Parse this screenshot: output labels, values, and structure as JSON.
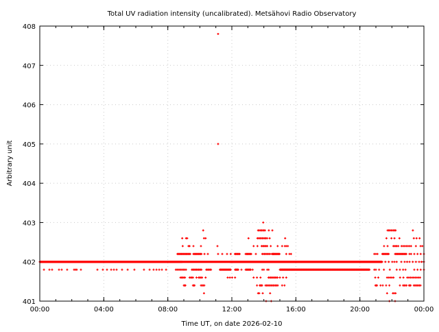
{
  "chart_data": {
    "type": "scatter",
    "title": "Total UV radiation intensity (uncalibrated). Metsähovi Radio Observatory",
    "xlabel": "Time UT, on date 2026-02-10",
    "ylabel": "Arbitrary unit",
    "xlim_hours": [
      0,
      24
    ],
    "ylim": [
      401,
      408
    ],
    "grid": true,
    "x_ticks": [
      {
        "hour": 0,
        "label": "00:00"
      },
      {
        "hour": 4,
        "label": "04:00"
      },
      {
        "hour": 8,
        "label": "08:00"
      },
      {
        "hour": 12,
        "label": "12:00"
      },
      {
        "hour": 16,
        "label": "16:00"
      },
      {
        "hour": 20,
        "label": "20:00"
      },
      {
        "hour": 24,
        "label": "00:00"
      }
    ],
    "y_ticks": [
      "401",
      "402",
      "403",
      "404",
      "405",
      "406",
      "407",
      "408"
    ],
    "series_color": "#ff0000",
    "series": [
      {
        "value": 407.8,
        "points": [
          11.14
        ]
      },
      {
        "value": 405.0,
        "points": [
          11.14
        ]
      },
      {
        "value": 403.0,
        "points": [
          13.96
        ]
      },
      {
        "value": 402.8,
        "points": [
          10.21,
          13.64,
          13.71,
          13.79,
          13.86,
          13.93,
          14.0,
          14.07,
          14.31,
          14.53,
          21.73,
          21.8,
          21.87,
          21.95,
          22.02,
          22.1,
          22.17,
          22.23,
          23.31
        ]
      },
      {
        "value": 402.6,
        "points": [
          8.9,
          9.14,
          9.21,
          10.26,
          10.36,
          13.04,
          13.6,
          13.67,
          13.75,
          13.82,
          13.9,
          13.97,
          14.05,
          14.12,
          14.2,
          14.36,
          15.33,
          21.66,
          21.97,
          22.16,
          22.47,
          23.37,
          23.54,
          23.73
        ]
      },
      {
        "value": 402.4,
        "points": [
          8.93,
          9.29,
          9.36,
          9.6,
          10.07,
          11.1,
          13.36,
          13.6,
          13.86,
          13.93,
          14.0,
          14.07,
          14.14,
          14.21,
          14.43,
          14.86,
          15.14,
          15.31,
          15.4,
          15.5,
          21.51,
          21.73,
          22.09,
          22.17,
          22.24,
          22.31,
          22.4,
          22.6,
          22.7,
          22.8,
          22.9,
          23.0,
          23.1,
          23.2,
          23.5,
          23.79,
          23.9
        ]
      },
      {
        "value": 402.2,
        "runs": [
          [
            8.6,
            9.4,
            0.05
          ],
          [
            9.6,
            10.1,
            0.05
          ],
          [
            12.19,
            12.5,
            0.05
          ],
          [
            12.86,
            13.21,
            0.05
          ],
          [
            13.9,
            14.4,
            0.07
          ],
          [
            14.5,
            15.0,
            0.04
          ],
          [
            21.4,
            21.8,
            0.05
          ],
          [
            22.2,
            22.9,
            0.05
          ]
        ],
        "points": [
          10.29,
          10.5,
          11.14,
          11.4,
          11.7,
          11.93,
          13.5,
          14.6,
          15.4,
          15.6,
          15.7,
          20.9,
          21.0,
          21.1,
          23.1,
          23.2,
          23.4,
          23.6,
          23.8,
          24.0
        ]
      },
      {
        "value": 402.0,
        "runs": [
          [
            0,
            8.9,
            0.0167
          ],
          [
            8.9,
            11.9,
            0.03
          ],
          [
            11.9,
            21.4,
            0.0167
          ]
        ],
        "points": [
          21.59,
          21.8,
          22.02,
          22.16,
          22.3,
          22.59,
          22.8,
          22.95,
          23.1,
          23.3,
          23.5,
          23.7,
          23.85,
          24.0
        ]
      },
      {
        "value": 401.8,
        "runs": [
          [
            8.5,
            9.2,
            0.08
          ],
          [
            9.5,
            10.1,
            0.06
          ],
          [
            10.4,
            10.7,
            0.06
          ],
          [
            11.25,
            11.93,
            0.04
          ],
          [
            12.2,
            12.4,
            0.04
          ],
          [
            12.86,
            13.21,
            0.04
          ],
          [
            13.9,
            14.06,
            0.1
          ],
          [
            15.0,
            20.6,
            0.025
          ]
        ],
        "points": [
          0.26,
          0.6,
          0.77,
          1.2,
          1.37,
          1.71,
          2.14,
          2.23,
          2.31,
          2.57,
          3.6,
          3.94,
          4.2,
          4.46,
          4.63,
          4.8,
          5.14,
          5.49,
          5.91,
          6.51,
          6.86,
          7.11,
          7.29,
          7.46,
          7.63,
          7.89,
          12.6,
          13.3,
          14.21,
          14.3,
          20.9,
          21.0,
          21.2,
          21.5,
          21.87,
          22.3,
          22.5,
          22.7,
          22.85,
          23.4,
          23.6,
          23.8,
          24.0
        ]
      },
      {
        "value": 401.6,
        "runs": [
          [
            8.79,
            9.07,
            0.07
          ],
          [
            9.36,
            9.57,
            0.07
          ],
          [
            9.93,
            10.14,
            0.07
          ],
          [
            14.29,
            14.86,
            0.07
          ],
          [
            21.7,
            22.1,
            0.1
          ],
          [
            23.06,
            23.8,
            0.1
          ]
        ],
        "points": [
          9.79,
          10.36,
          11.74,
          11.88,
          12.02,
          12.2,
          13.36,
          13.57,
          13.79,
          15.0,
          15.2,
          15.4,
          20.96,
          21.15,
          22.51,
          22.72,
          22.96
        ]
      },
      {
        "value": 401.4,
        "runs": [
          [
            9.0,
            9.1,
            0.05
          ],
          [
            9.57,
            9.67,
            0.05
          ],
          [
            10.07,
            10.29,
            0.07
          ],
          [
            13.74,
            13.9,
            0.05
          ],
          [
            14.1,
            14.9,
            0.07
          ],
          [
            20.97,
            21.1,
            0.05
          ],
          [
            22.7,
            22.95,
            0.07
          ],
          [
            23.07,
            23.2,
            0.05
          ],
          [
            23.37,
            23.8,
            0.07
          ]
        ],
        "points": [
          13.57,
          15.14,
          15.29,
          21.29,
          21.43,
          21.64,
          21.84,
          22.5
        ]
      },
      {
        "value": 401.2,
        "points": [
          10.26,
          13.64,
          13.71,
          13.93,
          14.39,
          21.7,
          22.06,
          22.14,
          22.23
        ]
      },
      {
        "value": 401.0,
        "points": [
          14.14,
          14.46,
          21.84,
          22.2
        ]
      }
    ]
  }
}
